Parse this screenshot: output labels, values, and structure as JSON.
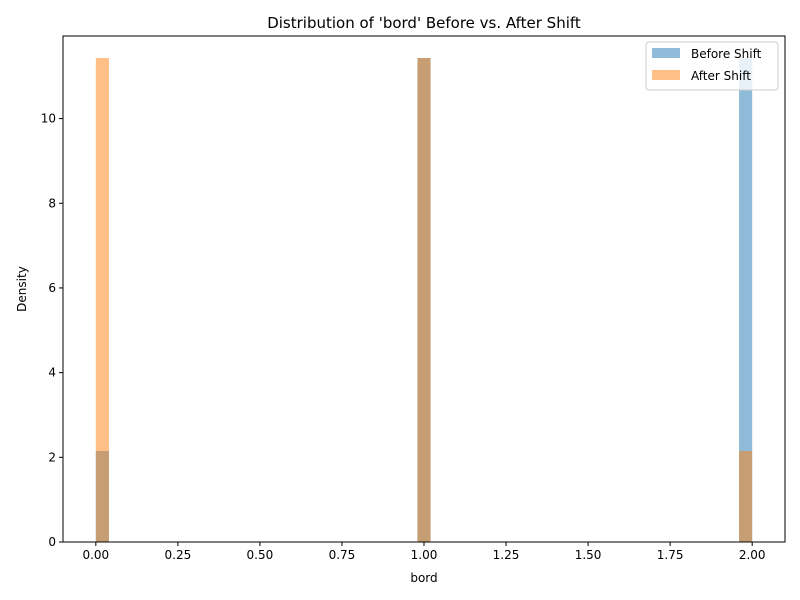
{
  "chart_data": {
    "type": "bar",
    "title": "Distribution of 'bord' Before vs. After Shift",
    "xlabel": "bord",
    "ylabel": "Density",
    "xlim": [
      -0.1,
      2.1
    ],
    "ylim": [
      0,
      11.95
    ],
    "xticks": [
      0.0,
      0.25,
      0.5,
      0.75,
      1.0,
      1.25,
      1.5,
      1.75,
      2.0
    ],
    "xtick_labels": [
      "0.00",
      "0.25",
      "0.50",
      "0.75",
      "1.00",
      "1.25",
      "1.50",
      "1.75",
      "2.00"
    ],
    "yticks": [
      0,
      2,
      4,
      6,
      8,
      10
    ],
    "ytick_labels": [
      "0",
      "2",
      "4",
      "6",
      "8",
      "10"
    ],
    "bin_width": 0.04,
    "grid": false,
    "legend_placement": "top-right",
    "series": [
      {
        "name": "Before Shift",
        "color": "#1f77b4",
        "opacity": 0.5,
        "bins": [
          {
            "x0": 0.0,
            "x1": 0.04,
            "density": 2.15
          },
          {
            "x0": 0.98,
            "x1": 1.02,
            "density": 11.43
          },
          {
            "x0": 1.96,
            "x1": 2.0,
            "density": 11.43
          }
        ]
      },
      {
        "name": "After Shift",
        "color": "#ff7f0e",
        "opacity": 0.5,
        "bins": [
          {
            "x0": 0.0,
            "x1": 0.04,
            "density": 11.43
          },
          {
            "x0": 0.98,
            "x1": 1.02,
            "density": 11.43
          },
          {
            "x0": 1.96,
            "x1": 2.0,
            "density": 2.15
          }
        ]
      }
    ]
  }
}
